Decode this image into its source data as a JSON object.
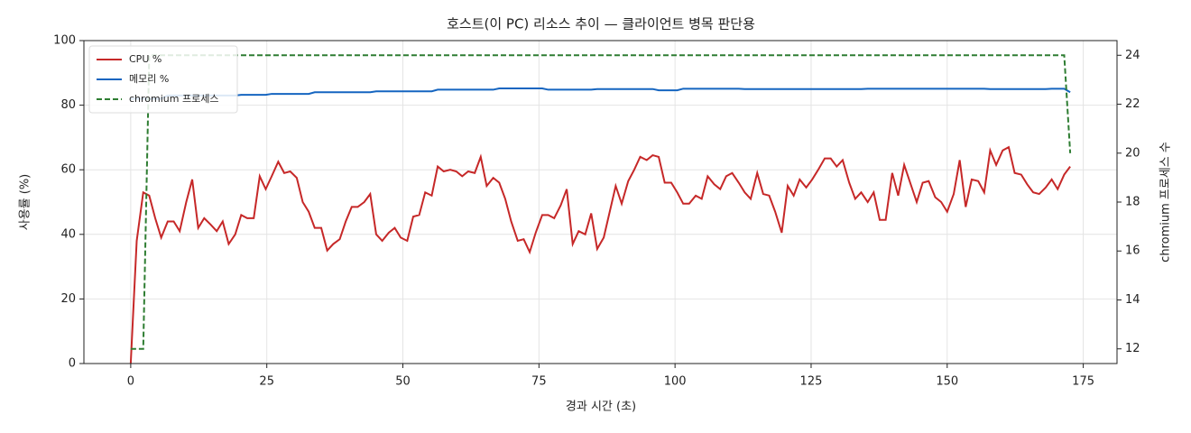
{
  "chart_data": {
    "type": "line",
    "title": "호스트(이 PC) 리소스 추이 — 클라이언트 병목 판단용",
    "x_label": "경과 시간 (초)",
    "y_label": "사용률 (%)",
    "y2_label": "chromium 프로세스 수",
    "xlim": [
      -8.6,
      181.2
    ],
    "ylim": [
      0,
      100
    ],
    "y2lim": [
      11.4,
      24.6
    ],
    "xticks": [
      0,
      25,
      50,
      75,
      100,
      125,
      150,
      175
    ],
    "yticks": [
      0,
      20,
      40,
      60,
      80,
      100
    ],
    "y2ticks": [
      12,
      14,
      16,
      18,
      20,
      22,
      24
    ],
    "grid": true,
    "legend": "upper left",
    "x": [
      0,
      1.1,
      2.3,
      3.4,
      4.5,
      5.6,
      6.8,
      7.9,
      9.0,
      10.2,
      11.3,
      12.4,
      13.5,
      14.7,
      15.8,
      16.9,
      18.0,
      19.2,
      20.3,
      21.4,
      22.6,
      23.7,
      24.8,
      25.9,
      27.1,
      28.2,
      29.3,
      30.5,
      31.6,
      32.7,
      33.8,
      35.0,
      36.1,
      37.2,
      38.4,
      39.5,
      40.6,
      41.7,
      42.9,
      44.0,
      45.1,
      46.2,
      47.4,
      48.5,
      49.6,
      50.8,
      51.9,
      53.0,
      54.1,
      55.3,
      56.4,
      57.5,
      58.7,
      59.8,
      60.9,
      62.0,
      63.2,
      64.3,
      65.4,
      66.6,
      67.7,
      68.8,
      69.9,
      71.1,
      72.2,
      73.3,
      74.4,
      75.6,
      76.7,
      77.8,
      79.0,
      80.1,
      81.2,
      82.3,
      83.5,
      84.6,
      85.7,
      86.9,
      88.0,
      89.1,
      90.2,
      91.4,
      92.5,
      93.6,
      94.8,
      95.9,
      97.0,
      98.1,
      99.3,
      100.4,
      101.5,
      102.6,
      103.8,
      104.9,
      106.0,
      107.2,
      108.3,
      109.4,
      110.5,
      111.7,
      112.8,
      113.9,
      115.1,
      116.2,
      117.3,
      118.4,
      119.6,
      120.7,
      121.8,
      122.9,
      124.1,
      125.2,
      126.3,
      127.5,
      128.6,
      129.7,
      130.8,
      132.0,
      133.1,
      134.2,
      135.4,
      136.5,
      137.6,
      138.7,
      139.9,
      141.0,
      142.1,
      143.3,
      144.4,
      145.5,
      146.6,
      147.8,
      148.9,
      150.0,
      151.2,
      152.3,
      153.4,
      154.5,
      155.7,
      156.8,
      157.9,
      159.0,
      160.2,
      161.3,
      162.4,
      163.6,
      164.7,
      165.8,
      166.9,
      168.1,
      169.2,
      170.3,
      171.5,
      172.6
    ],
    "series": [
      {
        "name": "CPU %",
        "color": "#c62828",
        "axis": "y",
        "line_style": "solid",
        "values": [
          0,
          38,
          53,
          52,
          45,
          39,
          44,
          44,
          41,
          50,
          57,
          42,
          45,
          43,
          41,
          44,
          37,
          40,
          46,
          45,
          45,
          58,
          54,
          58,
          62.5,
          59,
          59.5,
          57.5,
          50,
          47,
          42,
          42,
          35,
          37,
          38.5,
          44,
          48.5,
          48.5,
          50,
          52.5,
          40,
          38,
          40.5,
          42,
          39,
          38,
          45.5,
          46,
          53,
          52,
          61,
          59.5,
          60,
          59.5,
          58,
          59.5,
          59,
          64,
          55,
          57.5,
          56,
          51,
          44,
          38,
          38.5,
          34.5,
          40.5,
          46,
          46,
          45,
          49,
          54,
          37,
          41,
          40,
          46.5,
          35.5,
          39,
          47,
          55,
          49.5,
          56.5,
          60,
          64,
          63,
          64.5,
          64,
          56,
          56,
          53,
          49.5,
          49.5,
          52,
          51,
          58,
          55.5,
          54,
          58,
          59,
          56,
          53,
          51,
          59,
          52.5,
          52,
          47,
          40.5,
          55,
          52,
          57,
          54.5,
          57,
          60,
          63.5,
          63.5,
          61,
          63,
          56,
          51,
          53,
          50,
          53,
          44.5,
          44.5,
          59,
          52,
          61.5,
          55.5,
          50,
          56,
          56.5,
          51.5,
          50,
          47,
          52.5,
          63,
          48.5,
          57,
          56.5,
          53,
          66,
          61.5,
          66,
          67,
          59,
          58.5,
          55.5,
          53,
          52.5,
          54.5,
          57,
          54,
          58.5,
          61
        ]
      },
      {
        "name": "메모리 %",
        "color": "#1565c0",
        "axis": "y",
        "line_style": "solid",
        "values": [
          82,
          82,
          82,
          82,
          82,
          82,
          83,
          83,
          83,
          83,
          83,
          83,
          83,
          83,
          83,
          83,
          83,
          83,
          83.2,
          83.2,
          83.2,
          83.2,
          83.2,
          83.5,
          83.5,
          83.5,
          83.5,
          83.5,
          83.5,
          83.5,
          84,
          84,
          84,
          84,
          84,
          84,
          84,
          84,
          84,
          84,
          84.3,
          84.3,
          84.3,
          84.3,
          84.3,
          84.3,
          84.3,
          84.3,
          84.3,
          84.3,
          84.8,
          84.8,
          84.8,
          84.8,
          84.8,
          84.8,
          84.8,
          84.8,
          84.8,
          84.8,
          85.2,
          85.2,
          85.2,
          85.2,
          85.2,
          85.2,
          85.2,
          85.2,
          84.8,
          84.8,
          84.8,
          84.8,
          84.8,
          84.8,
          84.8,
          84.8,
          85,
          85,
          85,
          85,
          85,
          85,
          85,
          85,
          85,
          85,
          84.6,
          84.6,
          84.6,
          84.6,
          85.1,
          85.1,
          85.1,
          85.1,
          85.1,
          85.1,
          85.1,
          85.1,
          85.1,
          85.1,
          85,
          85,
          85,
          85,
          85,
          85,
          85,
          85,
          85,
          85,
          85,
          85,
          85,
          85,
          85,
          85,
          85,
          85,
          85,
          85,
          85.1,
          85.1,
          85.1,
          85.1,
          85.1,
          85.1,
          85.1,
          85.1,
          85.1,
          85.1,
          85.1,
          85.1,
          85.1,
          85.1,
          85.1,
          85.1,
          85.1,
          85.1,
          85.1,
          85.1,
          85,
          85,
          85,
          85,
          85,
          85,
          85,
          85,
          85,
          85,
          85.1,
          85.1,
          85.1,
          84
        ]
      },
      {
        "name": "chromium 프로세스",
        "color": "#2e7d32",
        "axis": "y2",
        "line_style": "dashed",
        "values": [
          12,
          12,
          12,
          24,
          24,
          24,
          24,
          24,
          24,
          24,
          24,
          24,
          24,
          24,
          24,
          24,
          24,
          24,
          24,
          24,
          24,
          24,
          24,
          24,
          24,
          24,
          24,
          24,
          24,
          24,
          24,
          24,
          24,
          24,
          24,
          24,
          24,
          24,
          24,
          24,
          24,
          24,
          24,
          24,
          24,
          24,
          24,
          24,
          24,
          24,
          24,
          24,
          24,
          24,
          24,
          24,
          24,
          24,
          24,
          24,
          24,
          24,
          24,
          24,
          24,
          24,
          24,
          24,
          24,
          24,
          24,
          24,
          24,
          24,
          24,
          24,
          24,
          24,
          24,
          24,
          24,
          24,
          24,
          24,
          24,
          24,
          24,
          24,
          24,
          24,
          24,
          24,
          24,
          24,
          24,
          24,
          24,
          24,
          24,
          24,
          24,
          24,
          24,
          24,
          24,
          24,
          24,
          24,
          24,
          24,
          24,
          24,
          24,
          24,
          24,
          24,
          24,
          24,
          24,
          24,
          24,
          24,
          24,
          24,
          24,
          24,
          24,
          24,
          24,
          24,
          24,
          24,
          24,
          24,
          24,
          24,
          24,
          24,
          24,
          24,
          24,
          24,
          24,
          24,
          24,
          24,
          24,
          24,
          24,
          24,
          24,
          24,
          24,
          20
        ]
      }
    ]
  }
}
